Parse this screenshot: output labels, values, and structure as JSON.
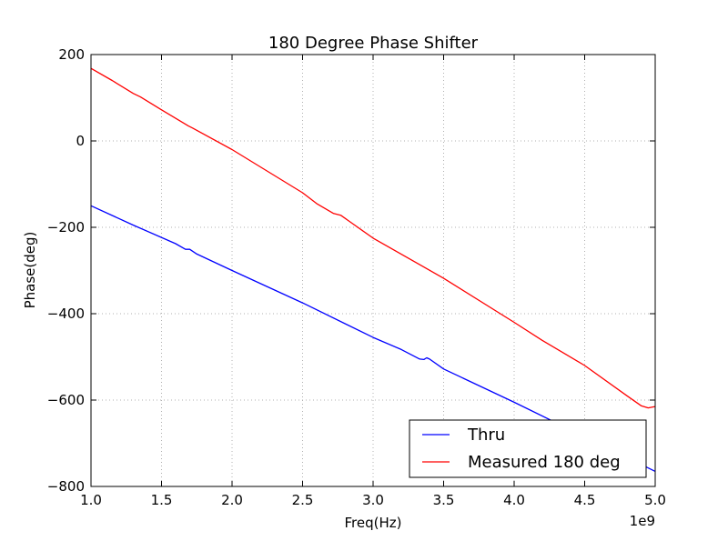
{
  "chart_data": {
    "type": "line",
    "title": "180 Degree Phase Shifter",
    "xlabel": "Freq(Hz)",
    "ylabel": "Phase(deg)",
    "x_offset_label": "1e9",
    "xlim": [
      1.0,
      5.0
    ],
    "ylim": [
      -800,
      200
    ],
    "x_ticks": [
      1.0,
      1.5,
      2.0,
      2.5,
      3.0,
      3.5,
      4.0,
      4.5,
      5.0
    ],
    "x_tick_labels": [
      "1.0",
      "1.5",
      "2.0",
      "2.5",
      "3.0",
      "3.5",
      "4.0",
      "4.5",
      "5.0"
    ],
    "y_ticks": [
      200,
      0,
      -200,
      -400,
      -600,
      -800
    ],
    "y_tick_labels": [
      "200",
      "0",
      "−200",
      "−400",
      "−600",
      "−800"
    ],
    "grid": true,
    "legend_position": "bottom-right",
    "series": [
      {
        "name": "Thru",
        "color": "#0000ff",
        "x": [
          1.0,
          1.3,
          1.6,
          1.67,
          1.7,
          1.75,
          2.0,
          2.5,
          3.0,
          3.2,
          3.33,
          3.36,
          3.38,
          3.4,
          3.5,
          4.0,
          4.5,
          5.0
        ],
        "y": [
          -150,
          -195,
          -238,
          -251,
          -251,
          -262,
          -300,
          -375,
          -455,
          -483,
          -505,
          -506,
          -502,
          -505,
          -528,
          -605,
          -685,
          -765
        ]
      },
      {
        "name": "Measured 180 deg",
        "color": "#ff0000",
        "x": [
          1.0,
          1.15,
          1.3,
          1.35,
          1.5,
          1.69,
          1.72,
          2.0,
          2.5,
          2.6,
          2.72,
          2.77,
          3.0,
          3.35,
          3.5,
          4.0,
          4.2,
          4.5,
          4.8,
          4.9,
          4.95,
          5.0
        ],
        "y": [
          168,
          140,
          110,
          102,
          72,
          35,
          30,
          -20,
          -120,
          -145,
          -168,
          -172,
          -225,
          -290,
          -318,
          -420,
          -462,
          -520,
          -590,
          -613,
          -618,
          -615
        ]
      }
    ]
  }
}
